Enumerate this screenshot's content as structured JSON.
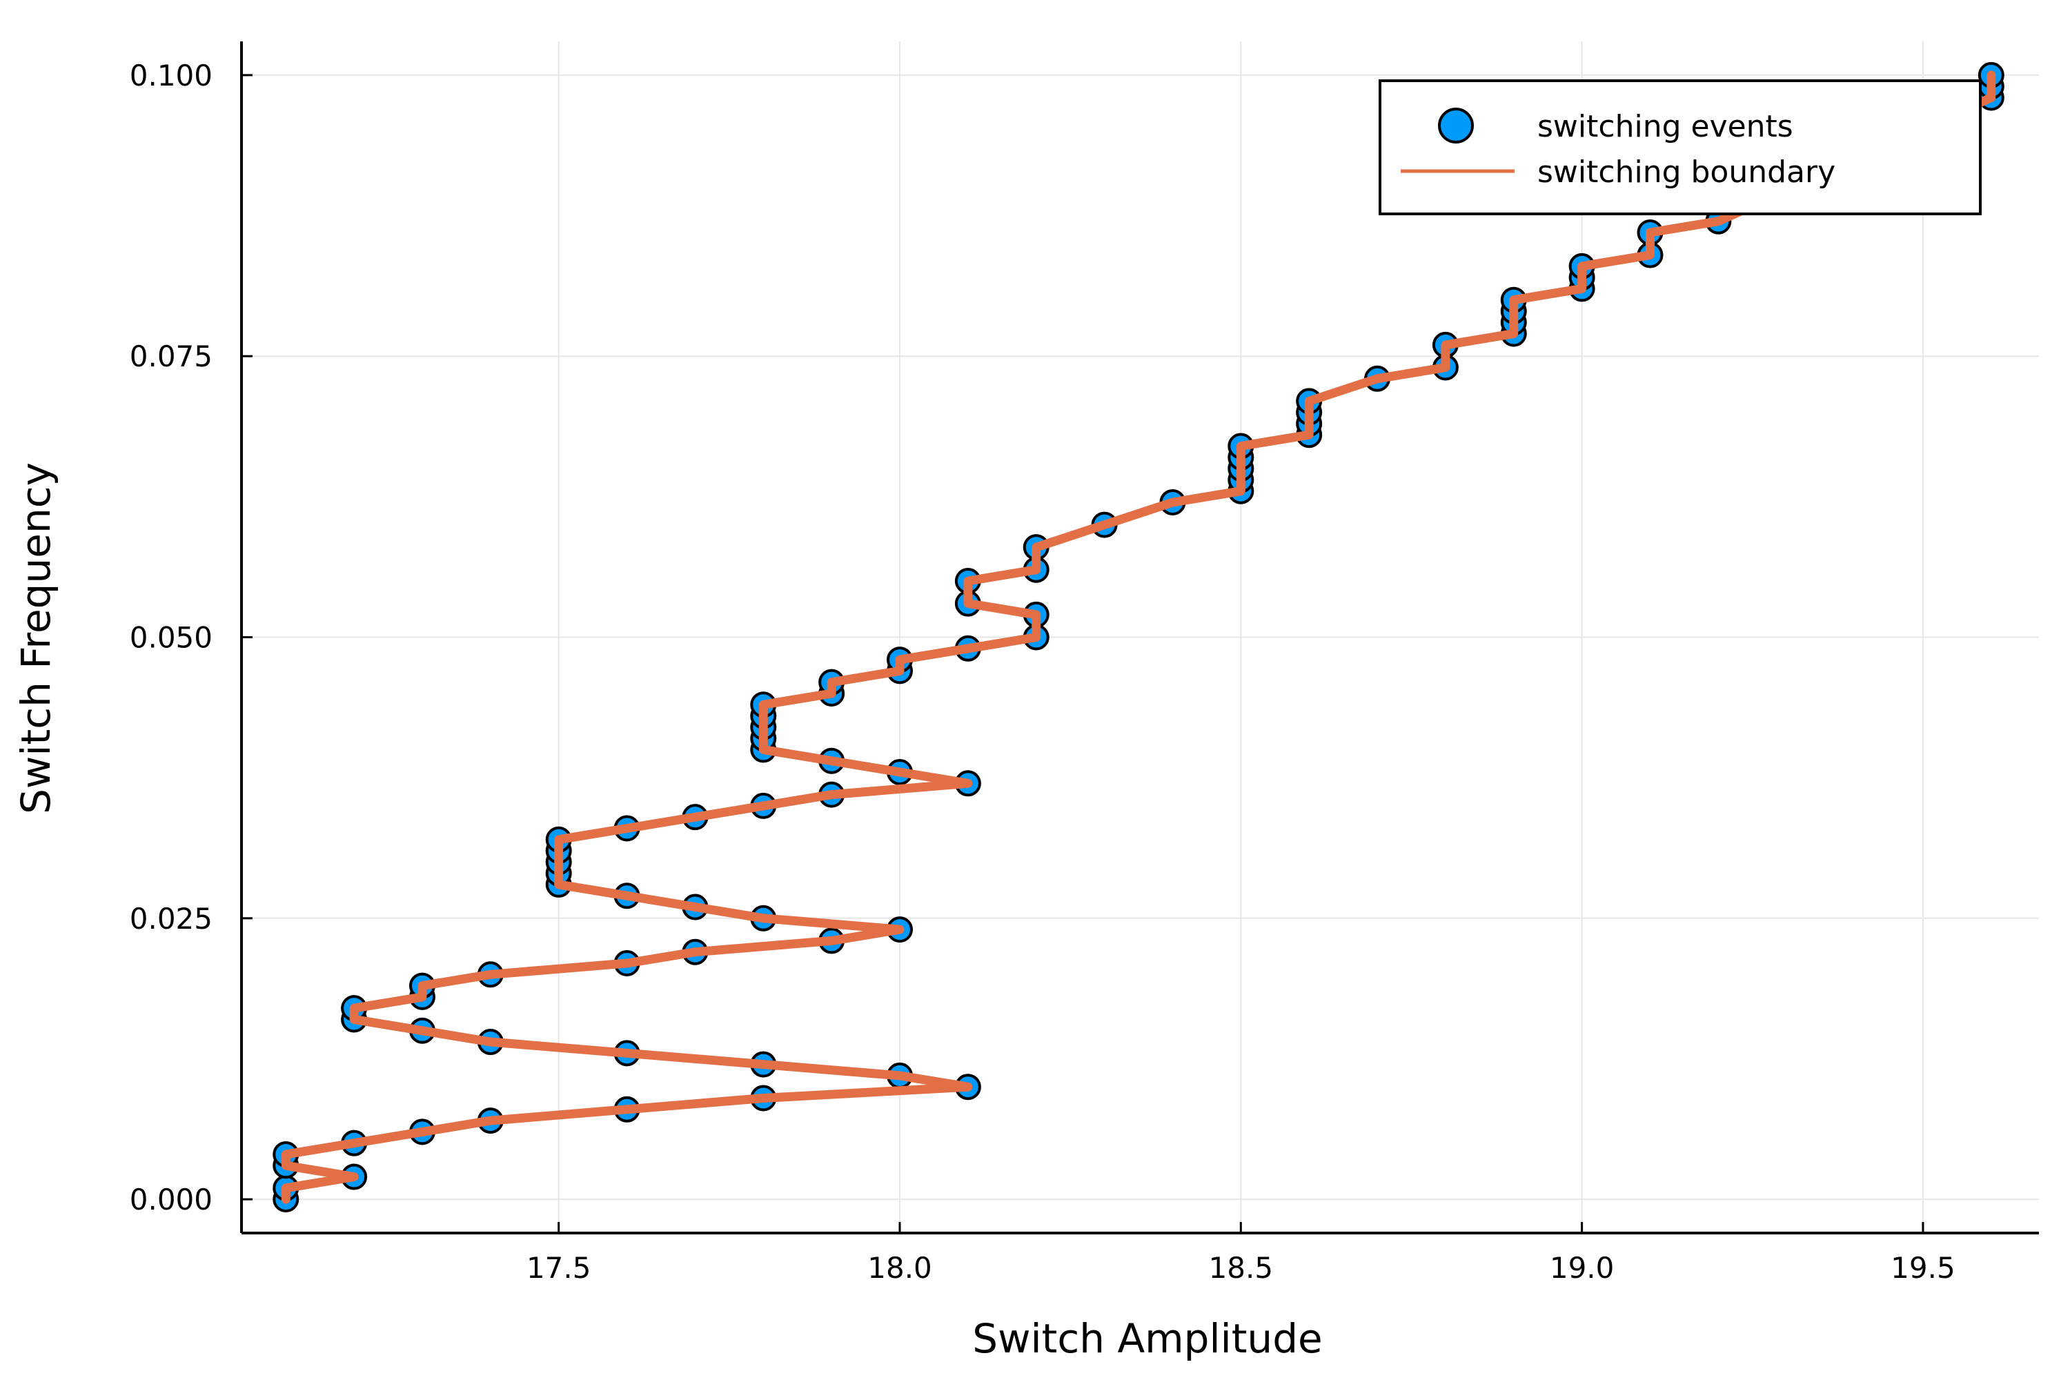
{
  "chart_data": {
    "type": "scatter",
    "xlabel": "Switch Amplitude",
    "ylabel": "Switch Frequency",
    "xlim": [
      17.035,
      19.67
    ],
    "ylim": [
      -0.003,
      0.103
    ],
    "xticks": [
      17.5,
      18.0,
      18.5,
      19.0,
      19.5
    ],
    "xtick_labels": [
      "17.5",
      "18.0",
      "18.5",
      "19.0",
      "19.5"
    ],
    "yticks": [
      0.0,
      0.025,
      0.05,
      0.075,
      0.1
    ],
    "ytick_labels": [
      "0.000",
      "0.025",
      "0.050",
      "0.075",
      "0.100"
    ],
    "grid": true,
    "legend_position": "top-right",
    "colors": {
      "events": "#009AFA",
      "boundary": "#E26F46"
    },
    "series": [
      {
        "name": "switching events",
        "kind": "scatter",
        "x": [
          17.1,
          17.1,
          17.2,
          17.1,
          17.1,
          17.2,
          17.3,
          17.4,
          17.6,
          17.8,
          18.1,
          18.0,
          17.8,
          17.6,
          17.4,
          17.3,
          17.2,
          17.2,
          17.3,
          17.3,
          17.4,
          17.6,
          17.7,
          17.9,
          18.0,
          17.8,
          17.7,
          17.6,
          17.5,
          17.5,
          17.5,
          17.5,
          17.5,
          17.6,
          17.7,
          17.8,
          17.9,
          18.1,
          18.0,
          17.9,
          17.8,
          17.8,
          17.8,
          17.8,
          17.8,
          17.9,
          17.9,
          18.0,
          18.0,
          18.1,
          18.2,
          18.2,
          18.1,
          18.1,
          18.2,
          18.2,
          18.3,
          18.4,
          18.5,
          18.5,
          18.5,
          18.5,
          18.5,
          18.6,
          18.6,
          18.6,
          18.6,
          18.7,
          18.8,
          18.8,
          18.9,
          18.9,
          18.9,
          18.9,
          19.0,
          19.0,
          19.0,
          19.1,
          19.1,
          19.2,
          19.6,
          19.6,
          19.6
        ],
        "y": [
          0.0,
          0.001,
          0.002,
          0.003,
          0.004,
          0.005,
          0.006,
          0.007,
          0.008,
          0.009,
          0.01,
          0.011,
          0.012,
          0.013,
          0.014,
          0.015,
          0.016,
          0.017,
          0.018,
          0.019,
          0.02,
          0.021,
          0.022,
          0.023,
          0.024,
          0.025,
          0.026,
          0.027,
          0.028,
          0.029,
          0.03,
          0.031,
          0.032,
          0.033,
          0.034,
          0.035,
          0.036,
          0.037,
          0.038,
          0.039,
          0.04,
          0.041,
          0.042,
          0.043,
          0.044,
          0.045,
          0.046,
          0.047,
          0.048,
          0.049,
          0.05,
          0.052,
          0.053,
          0.055,
          0.056,
          0.058,
          0.06,
          0.062,
          0.063,
          0.064,
          0.065,
          0.066,
          0.067,
          0.068,
          0.069,
          0.07,
          0.071,
          0.073,
          0.074,
          0.076,
          0.077,
          0.078,
          0.079,
          0.08,
          0.081,
          0.082,
          0.083,
          0.084,
          0.086,
          0.087,
          0.098,
          0.099,
          0.1
        ]
      },
      {
        "name": "switching boundary",
        "kind": "line",
        "x": [
          17.1,
          17.1,
          17.2,
          17.1,
          17.1,
          17.2,
          17.3,
          17.4,
          17.6,
          17.8,
          18.1,
          18.0,
          17.8,
          17.6,
          17.4,
          17.3,
          17.2,
          17.2,
          17.3,
          17.3,
          17.4,
          17.6,
          17.7,
          17.9,
          18.0,
          17.8,
          17.7,
          17.6,
          17.5,
          17.5,
          17.5,
          17.5,
          17.5,
          17.6,
          17.7,
          17.8,
          17.9,
          18.1,
          18.0,
          17.9,
          17.8,
          17.8,
          17.8,
          17.8,
          17.8,
          17.9,
          17.9,
          18.0,
          18.0,
          18.1,
          18.2,
          18.2,
          18.1,
          18.1,
          18.2,
          18.2,
          18.3,
          18.4,
          18.5,
          18.5,
          18.5,
          18.5,
          18.5,
          18.6,
          18.6,
          18.6,
          18.6,
          18.7,
          18.8,
          18.8,
          18.9,
          18.9,
          18.9,
          18.9,
          19.0,
          19.0,
          19.0,
          19.1,
          19.1,
          19.2,
          19.6,
          19.6,
          19.6
        ],
        "y": [
          0.0,
          0.001,
          0.002,
          0.003,
          0.004,
          0.005,
          0.006,
          0.007,
          0.008,
          0.009,
          0.01,
          0.011,
          0.012,
          0.013,
          0.014,
          0.015,
          0.016,
          0.017,
          0.018,
          0.019,
          0.02,
          0.021,
          0.022,
          0.023,
          0.024,
          0.025,
          0.026,
          0.027,
          0.028,
          0.029,
          0.03,
          0.031,
          0.032,
          0.033,
          0.034,
          0.035,
          0.036,
          0.037,
          0.038,
          0.039,
          0.04,
          0.041,
          0.042,
          0.043,
          0.044,
          0.045,
          0.046,
          0.047,
          0.048,
          0.049,
          0.05,
          0.052,
          0.053,
          0.055,
          0.056,
          0.058,
          0.06,
          0.062,
          0.063,
          0.064,
          0.065,
          0.066,
          0.067,
          0.068,
          0.069,
          0.07,
          0.071,
          0.073,
          0.074,
          0.076,
          0.077,
          0.078,
          0.079,
          0.08,
          0.081,
          0.082,
          0.083,
          0.084,
          0.086,
          0.087,
          0.098,
          0.099,
          0.1
        ]
      }
    ]
  }
}
